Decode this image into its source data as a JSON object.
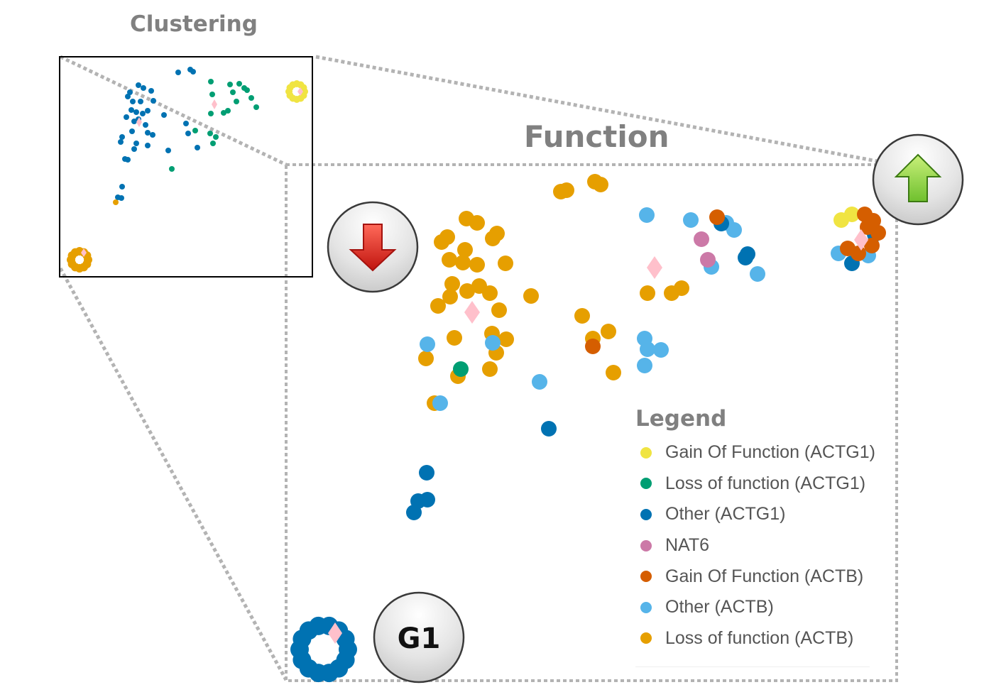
{
  "titles": {
    "clustering": "Clustering",
    "function": "Function"
  },
  "badges": {
    "g1": "G1",
    "down_arrow_icon": "arrow-down-icon",
    "up_arrow_icon": "arrow-up-icon"
  },
  "legend": {
    "title": "Legend",
    "items": [
      {
        "label": "Gain Of Function (ACTG1)",
        "color": "#f0e442"
      },
      {
        "label": "Loss of function (ACTG1)",
        "color": "#009e73"
      },
      {
        "label": "Other (ACTG1)",
        "color": "#0072b2"
      },
      {
        "label": "NAT6",
        "color": "#cc79a7"
      },
      {
        "label": "Gain Of Function (ACTB)",
        "color": "#d55e00"
      },
      {
        "label": "Other (ACTB)",
        "color": "#56b4e9"
      },
      {
        "label": "Loss of function (ACTB)",
        "color": "#e69f00"
      }
    ]
  },
  "colors": {
    "centroid": "#ffc0cb",
    "arrow_down": "#e0302a",
    "arrow_up": "#8ed84a",
    "connector": "#b3b3b3"
  }
}
